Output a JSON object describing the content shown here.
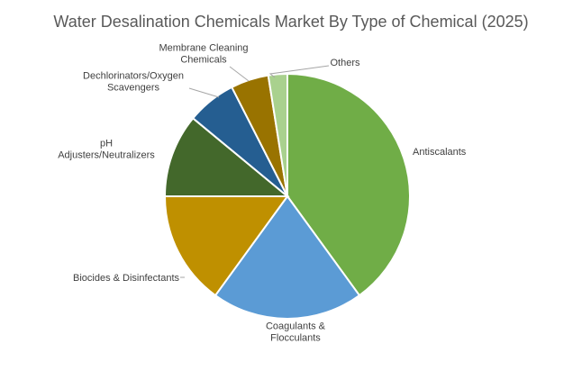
{
  "chart_data": {
    "type": "pie",
    "title": "Water Desalination Chemicals Market By Type of Chemical (2025)",
    "categories": [
      "Antiscalants",
      "Coagulants & Flocculants",
      "Biocides & Disinfectants",
      "pH Adjusters/Neutralizers",
      "Dechlorinators/Oxygen Scavengers",
      "Membrane Cleaning Chemicals",
      "Others"
    ],
    "values": [
      40,
      20,
      15,
      11,
      6.5,
      5,
      2.5
    ],
    "colors": [
      "#70AD47",
      "#5B9BD5",
      "#BF9000",
      "#43682B",
      "#255E91",
      "#997300",
      "#A9D18E"
    ],
    "legend": "none",
    "data_labels": [
      [
        "Antiscalants"
      ],
      [
        "Coagulants &",
        "Flocculants"
      ],
      [
        "Biocides & Disinfectants"
      ],
      [
        "pH",
        "Adjusters/Neutralizers"
      ],
      [
        "Dechlorinators/Oxygen",
        "Scavengers"
      ],
      [
        "Membrane Cleaning",
        "Chemicals"
      ],
      [
        "Others"
      ]
    ]
  }
}
